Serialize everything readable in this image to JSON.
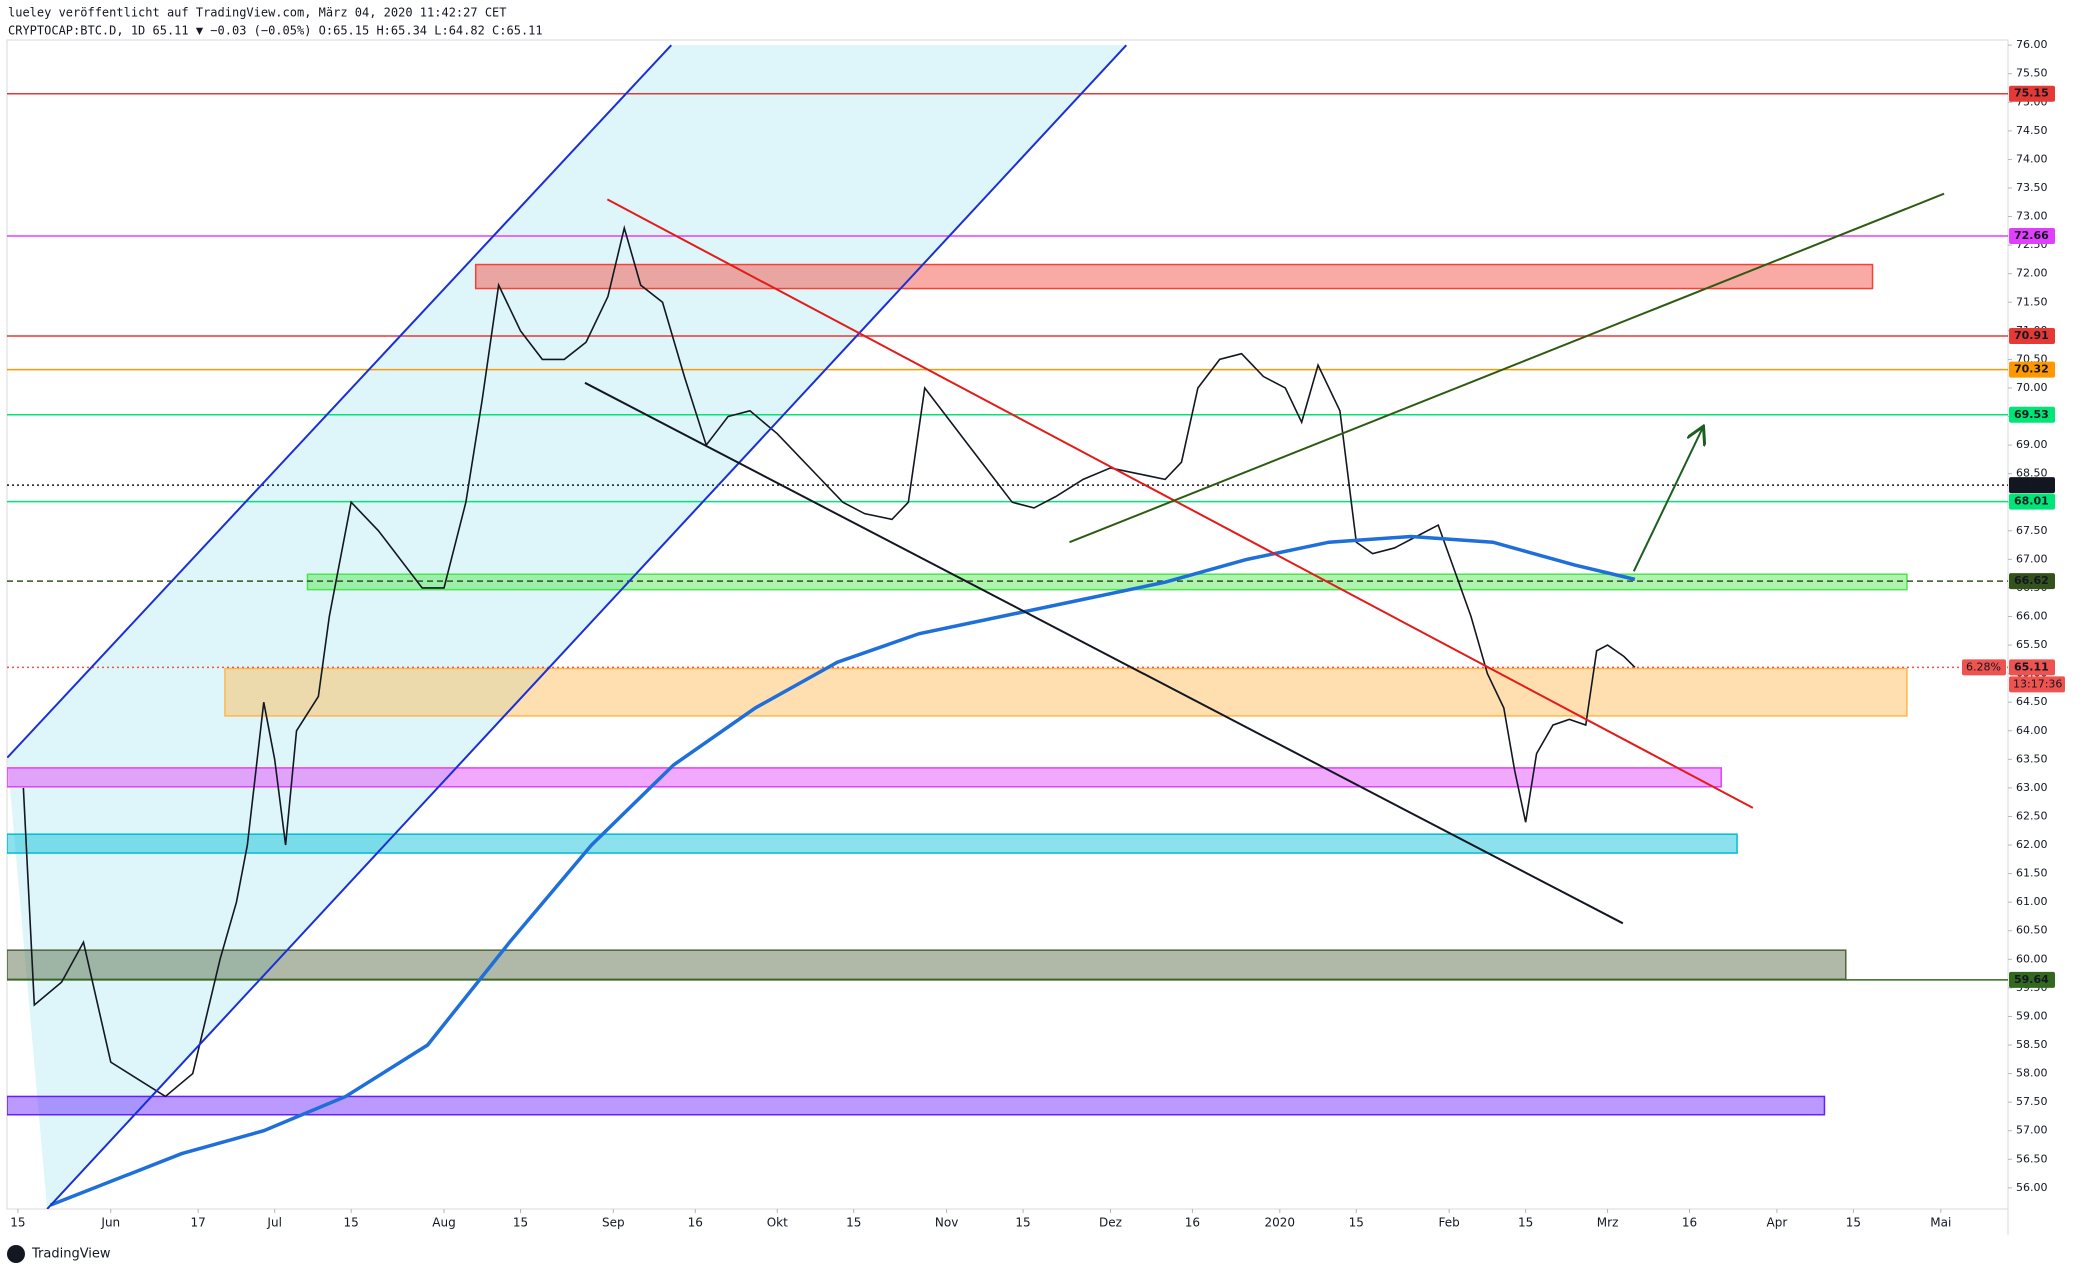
{
  "header": {
    "line1": "lueley veröffentlicht auf TradingView.com, März 04, 2020 11:42:27 CET",
    "line2": "CRYPTOCAP:BTC.D, 1D 65.11 ▼ −0.03 (−0.05%) O:65.15 H:65.34 L:64.82 C:65.11"
  },
  "footer": {
    "brand": "TradingView"
  },
  "chart_data": {
    "type": "line",
    "xlim": [
      -2,
      364.3
    ],
    "ylim": [
      55.63,
      76.09
    ],
    "grid": false,
    "xticks": [
      {
        "value": 0,
        "label": "15"
      },
      {
        "value": 17,
        "label": "Jun"
      },
      {
        "value": 33,
        "label": "17"
      },
      {
        "value": 47,
        "label": "Jul"
      },
      {
        "value": 61,
        "label": "15"
      },
      {
        "value": 78,
        "label": "Aug"
      },
      {
        "value": 92,
        "label": "15"
      },
      {
        "value": 109,
        "label": "Sep"
      },
      {
        "value": 124,
        "label": "16"
      },
      {
        "value": 139,
        "label": "Okt"
      },
      {
        "value": 153,
        "label": "15"
      },
      {
        "value": 170,
        "label": "Nov"
      },
      {
        "value": 184,
        "label": "15"
      },
      {
        "value": 200,
        "label": "Dez"
      },
      {
        "value": 215,
        "label": "16"
      },
      {
        "value": 231,
        "label": "2020"
      },
      {
        "value": 245,
        "label": "15"
      },
      {
        "value": 262,
        "label": "Feb"
      },
      {
        "value": 276,
        "label": "15"
      },
      {
        "value": 291,
        "label": "Mrz"
      },
      {
        "value": 306,
        "label": "16"
      },
      {
        "value": 322,
        "label": "Apr"
      },
      {
        "value": 336,
        "label": "15"
      },
      {
        "value": 352,
        "label": "Mai"
      }
    ],
    "yticks": [
      {
        "value": 56,
        "label": "56.00"
      },
      {
        "value": 56.5,
        "label": "56.50"
      },
      {
        "value": 57,
        "label": "57.00"
      },
      {
        "value": 57.5,
        "label": "57.50"
      },
      {
        "value": 58,
        "label": "58.00"
      },
      {
        "value": 58.5,
        "label": "58.50"
      },
      {
        "value": 59,
        "label": "59.00"
      },
      {
        "value": 59.5,
        "label": "59.50"
      },
      {
        "value": 60,
        "label": "60.00"
      },
      {
        "value": 60.5,
        "label": "60.50"
      },
      {
        "value": 61,
        "label": "61.00"
      },
      {
        "value": 61.5,
        "label": "61.50"
      },
      {
        "value": 62,
        "label": "62.00"
      },
      {
        "value": 62.5,
        "label": "62.50"
      },
      {
        "value": 63,
        "label": "63.00"
      },
      {
        "value": 63.5,
        "label": "63.50"
      },
      {
        "value": 64,
        "label": "64.00"
      },
      {
        "value": 64.5,
        "label": "64.50"
      },
      {
        "value": 65,
        "label": "65.00"
      },
      {
        "value": 65.5,
        "label": "65.50"
      },
      {
        "value": 66,
        "label": "66.00"
      },
      {
        "value": 66.5,
        "label": "66.50"
      },
      {
        "value": 67,
        "label": "67.00"
      },
      {
        "value": 67.5,
        "label": "67.50"
      },
      {
        "value": 68,
        "label": "68.00"
      },
      {
        "value": 68.5,
        "label": "68.50"
      },
      {
        "value": 69,
        "label": "69.00"
      },
      {
        "value": 69.5,
        "label": "69.50"
      },
      {
        "value": 70,
        "label": "70.00"
      },
      {
        "value": 70.5,
        "label": "70.50"
      },
      {
        "value": 71,
        "label": "71.00"
      },
      {
        "value": 71.5,
        "label": "71.50"
      },
      {
        "value": 72,
        "label": "72.00"
      },
      {
        "value": 72.5,
        "label": "72.50"
      },
      {
        "value": 73,
        "label": "73.00"
      },
      {
        "value": 73.5,
        "label": "73.50"
      },
      {
        "value": 74,
        "label": "74.00"
      },
      {
        "value": 74.5,
        "label": "74.50"
      },
      {
        "value": 75,
        "label": "75.00"
      },
      {
        "value": 75.5,
        "label": "75.50"
      },
      {
        "value": 76,
        "label": "76.00"
      }
    ],
    "series": [
      {
        "color": "#131722",
        "x": [
          1,
          3,
          8,
          12,
          17,
          22,
          27,
          32,
          37,
          40,
          42,
          45,
          47,
          49,
          51,
          55,
          57,
          61,
          66,
          70,
          74,
          78,
          82,
          85,
          88,
          92,
          96,
          100,
          104,
          108,
          111,
          114,
          118,
          122,
          126,
          130,
          134,
          139,
          143,
          147,
          151,
          155,
          160,
          163,
          166,
          170,
          174,
          178,
          182,
          186,
          190,
          195,
          200,
          205,
          210,
          213,
          216,
          220,
          224,
          228,
          232,
          235,
          238,
          242,
          245,
          248,
          252,
          256,
          260,
          263,
          266,
          269,
          272,
          274,
          276,
          278,
          281,
          284,
          287,
          289,
          291,
          294,
          296
        ],
        "values": [
          63.0,
          59.2,
          59.6,
          60.3,
          58.2,
          57.9,
          57.6,
          58.0,
          60.0,
          61.0,
          62.0,
          64.5,
          63.5,
          62.0,
          64.0,
          64.6,
          66.0,
          68.0,
          67.5,
          67.0,
          66.5,
          66.5,
          68.0,
          69.8,
          71.8,
          71.0,
          70.5,
          70.5,
          70.8,
          71.6,
          72.8,
          71.8,
          71.5,
          70.2,
          69.0,
          69.5,
          69.6,
          69.2,
          68.8,
          68.4,
          68.0,
          67.8,
          67.7,
          68.0,
          70.0,
          69.5,
          69.0,
          68.5,
          68.0,
          67.9,
          68.1,
          68.4,
          68.6,
          68.5,
          68.4,
          68.7,
          70.0,
          70.5,
          70.6,
          70.2,
          70.0,
          69.4,
          70.4,
          69.6,
          67.3,
          67.1,
          67.2,
          67.4,
          67.6,
          66.8,
          66.0,
          65.0,
          64.4,
          63.3,
          62.4,
          63.6,
          64.1,
          64.2,
          64.1,
          65.4,
          65.5,
          65.3,
          65.11
        ]
      },
      {
        "color": "#1e6fd9",
        "x": [
          6,
          30,
          45,
          60,
          75,
          90,
          105,
          120,
          135,
          150,
          165,
          180,
          195,
          210,
          225,
          240,
          255,
          270,
          285,
          296
        ],
        "values": [
          55.7,
          56.6,
          57.0,
          57.6,
          58.5,
          60.3,
          62.0,
          63.4,
          64.4,
          65.2,
          65.7,
          66.0,
          66.3,
          66.6,
          67.0,
          67.3,
          67.4,
          67.3,
          66.9,
          66.65
        ]
      }
    ],
    "zones": [
      {
        "x": [
          83.8,
          339.5
        ],
        "y": [
          71.74,
          72.16
        ],
        "color": "#f44336"
      },
      {
        "x": [
          53,
          345.8
        ],
        "y": [
          66.47,
          66.74
        ],
        "color": "#4ce64c"
      },
      {
        "x": [
          37.9,
          345.8
        ],
        "y": [
          64.26,
          65.09
        ],
        "color": "#ffb74d"
      },
      {
        "x": [
          -2,
          311.8
        ],
        "y": [
          63.02,
          63.35
        ],
        "color": "#e040fb"
      },
      {
        "x": [
          -2,
          314.7
        ],
        "y": [
          61.86,
          62.19
        ],
        "color": "#00bcd4"
      },
      {
        "x": [
          -2,
          334.6
        ],
        "y": [
          59.65,
          60.16
        ],
        "color": "#50643c"
      },
      {
        "x": [
          -2,
          330.7
        ],
        "y": [
          57.28,
          57.6
        ],
        "color": "#651fff"
      }
    ],
    "hlines": [
      {
        "value": 75.15,
        "color": "#e53935",
        "style": "solid"
      },
      {
        "value": 72.66,
        "color": "#e040fb",
        "style": "solid"
      },
      {
        "value": 70.91,
        "color": "#e53935",
        "style": "solid"
      },
      {
        "value": 70.32,
        "color": "#ff9800",
        "style": "solid"
      },
      {
        "value": 69.53,
        "color": "#00e676",
        "style": "solid"
      },
      {
        "value": {
          "value": 68.3,
          "label": "68.30"
        },
        "color": "#131722",
        "style": "dotted"
      },
      {
        "value": 68.01,
        "color": "#00e676",
        "style": "solid"
      },
      {
        "value": 66.62,
        "color": "#33521c",
        "style": "dashed"
      },
      {
        "value": 65.11,
        "color": "#ef5350",
        "style": "dotted"
      },
      {
        "value": 59.64,
        "color": "#33691e",
        "style": "solid"
      }
    ],
    "lines": [
      {
        "x": [
          -1.94,
          119.6
        ],
        "y": [
          63.53,
          76.0
        ],
        "color": "#1a2fd6"
      },
      {
        "x": [
          5.35,
          202.9
        ],
        "y": [
          55.63,
          76.0
        ],
        "color": "#1a2fd6"
      },
      {
        "x": [
          107.9,
          317.6
        ],
        "y": [
          73.3,
          62.65
        ],
        "color": "#e31b1b"
      },
      {
        "x": [
          103.8,
          293.8
        ],
        "y": [
          70.09,
          60.63
        ],
        "color": "#131722"
      },
      {
        "x": [
          192.5,
          352.6
        ],
        "y": [
          67.3,
          73.4
        ],
        "color": "#2e5b12"
      },
      {
        "x": [
          295.8,
          308.4
        ],
        "y": [
          66.79,
          69.3
        ],
        "color": "#1b5e20",
        "arrow": true
      }
    ],
    "change_label": "6.28%",
    "countdown_label": "13:17:36"
  }
}
